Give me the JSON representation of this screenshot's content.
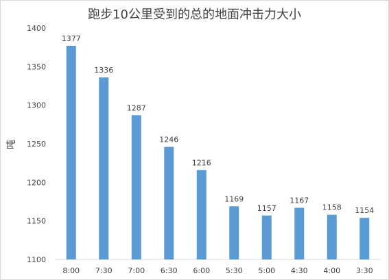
{
  "chart_data": {
    "type": "bar",
    "title": "跑步10公里受到的总的地面冲击力大小",
    "xlabel": "",
    "ylabel": "吨",
    "categories": [
      "8:00",
      "7:30",
      "7:00",
      "6:30",
      "6:00",
      "5:30",
      "5:00",
      "4:30",
      "4:00",
      "3:30"
    ],
    "values": [
      1377,
      1336,
      1287,
      1246,
      1216,
      1169,
      1157,
      1167,
      1158,
      1154
    ],
    "data_labels": [
      "1377",
      "1336",
      "1287",
      "1246",
      "1216",
      "1169",
      "1157",
      "1167",
      "1158",
      "1154"
    ],
    "ylim": [
      1100,
      1400
    ],
    "yticks": [
      "1100",
      "1150",
      "1200",
      "1250",
      "1300",
      "1350",
      "1400"
    ],
    "grid": false,
    "legend": "none",
    "colors": {
      "bar": "#5b9bd5",
      "axis": "#d9d9d9",
      "text": "#404040"
    }
  }
}
